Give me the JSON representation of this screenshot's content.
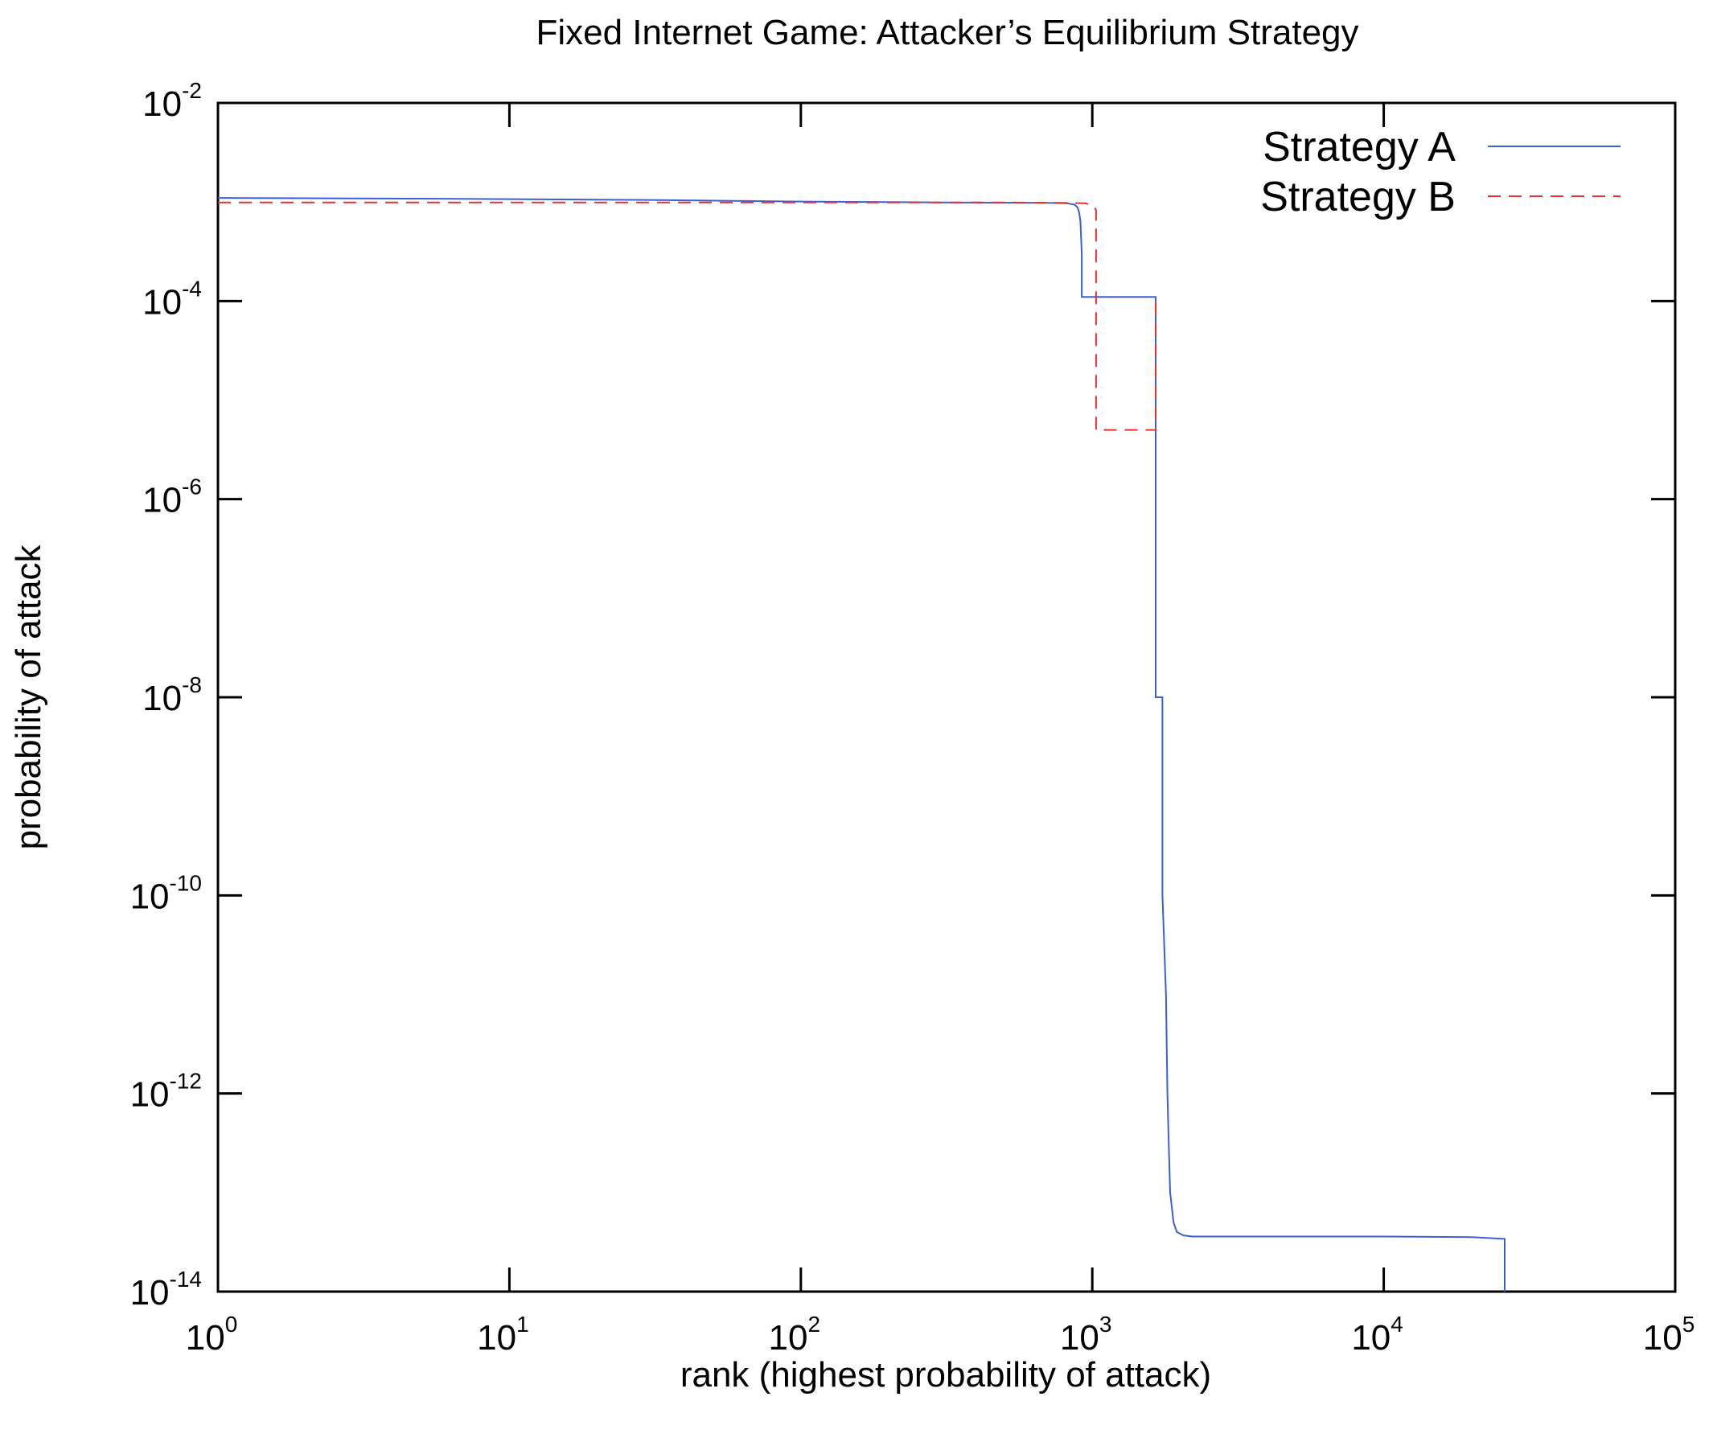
{
  "chart_data": {
    "type": "line",
    "title": "Fixed Internet Game: Attacker’s Equilibrium Strategy",
    "xlabel": "rank (highest probability of attack)",
    "ylabel": "probability of attack",
    "x_scale": "log",
    "y_scale": "log",
    "xlim": [
      1,
      100000
    ],
    "ylim": [
      1e-14,
      0.01
    ],
    "x_ticks": [
      {
        "value": 1,
        "base": "10",
        "exp": "0"
      },
      {
        "value": 10,
        "base": "10",
        "exp": "1"
      },
      {
        "value": 100,
        "base": "10",
        "exp": "2"
      },
      {
        "value": 1000,
        "base": "10",
        "exp": "3"
      },
      {
        "value": 10000,
        "base": "10",
        "exp": "4"
      },
      {
        "value": 100000,
        "base": "10",
        "exp": "5"
      }
    ],
    "y_ticks": [
      {
        "value": 1e-14,
        "base": "10",
        "exp": "-14"
      },
      {
        "value": 1e-12,
        "base": "10",
        "exp": "-12"
      },
      {
        "value": 1e-10,
        "base": "10",
        "exp": "-10"
      },
      {
        "value": 1e-08,
        "base": "10",
        "exp": "-8"
      },
      {
        "value": 1e-06,
        "base": "10",
        "exp": "-6"
      },
      {
        "value": 0.0001,
        "base": "10",
        "exp": "-4"
      },
      {
        "value": 0.01,
        "base": "10",
        "exp": "-2"
      }
    ],
    "grid": false,
    "legend_position": "top-right",
    "series": [
      {
        "name": "Strategy A",
        "color": "#3a5fd9",
        "dash": "solid",
        "x": [
          1,
          5,
          30,
          100,
          300,
          700,
          820,
          870,
          890,
          900,
          910,
          920,
          920,
          1650,
          1650,
          1740,
          1740,
          1790,
          1810,
          1830,
          1850,
          1900,
          1950,
          2050,
          2200,
          10000,
          20000,
          26000,
          26000
        ],
        "y": [
          0.0011,
          0.00108,
          0.00105,
          0.00101,
          0.00099,
          0.00098,
          0.00097,
          0.00094,
          0.00088,
          0.0008,
          0.00065,
          0.0003,
          0.00011,
          0.00011,
          1e-08,
          1e-08,
          1e-10,
          1e-11,
          1e-12,
          3e-13,
          1e-13,
          5e-14,
          4e-14,
          3.7e-14,
          3.6e-14,
          3.6e-14,
          3.55e-14,
          3.4e-14,
          1e-14
        ]
      },
      {
        "name": "Strategy B",
        "color": "#e8302e",
        "dash": "dashed",
        "x": [
          1,
          100,
          500,
          800,
          950,
          1010,
          1030,
          1030,
          1650,
          1650
        ],
        "y": [
          0.00099,
          0.00099,
          0.00099,
          0.00098,
          0.00097,
          0.0009,
          0.00083,
          5e-06,
          5e-06,
          0.0001
        ]
      }
    ]
  }
}
